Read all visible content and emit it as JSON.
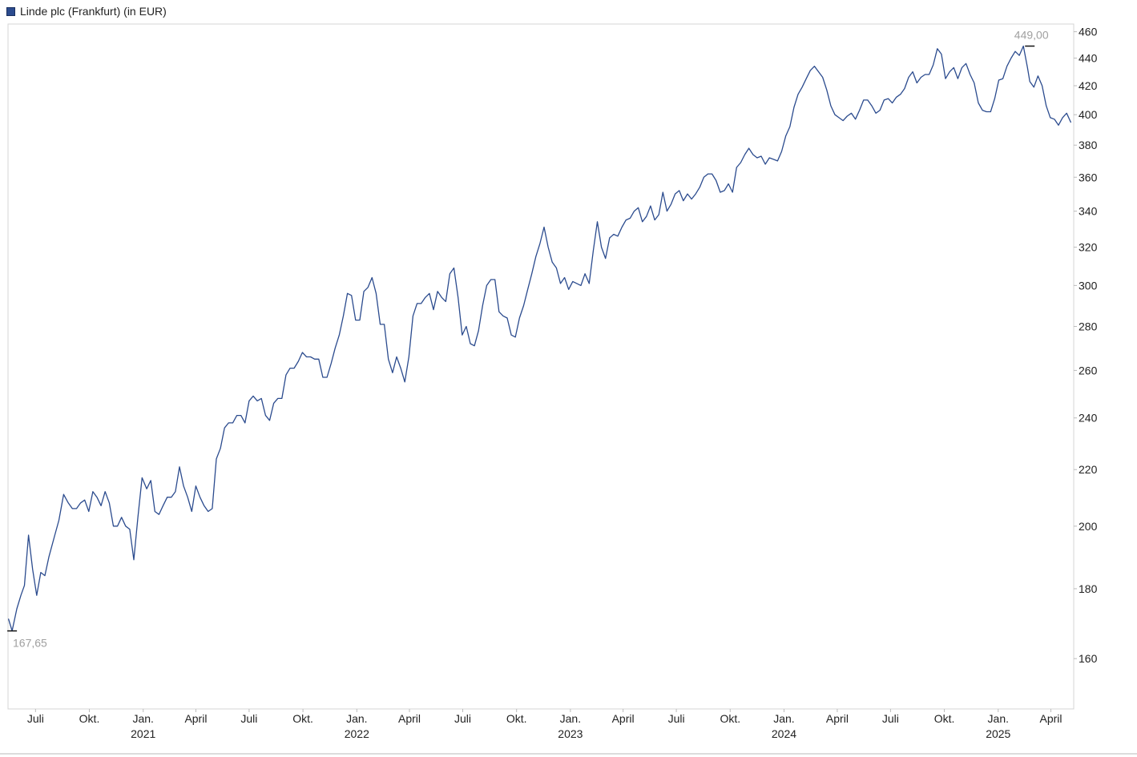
{
  "legend": {
    "label": "Linde plc (Frankfurt) (in EUR)",
    "color": "#2b4b8e"
  },
  "chart_data": {
    "type": "line",
    "title": "",
    "xlabel": "",
    "ylabel": "",
    "y_scale": "log",
    "ylim": [
      147,
      466
    ],
    "xlim": [
      "2020-05-15",
      "2025-05-10"
    ],
    "grid": false,
    "legend_position": "top-left",
    "y_ticks": [
      160,
      180,
      200,
      220,
      240,
      260,
      280,
      300,
      320,
      340,
      360,
      380,
      400,
      420,
      440,
      460
    ],
    "x_month_ticks": [
      {
        "date": "2020-07-01",
        "label": "Juli"
      },
      {
        "date": "2020-10-01",
        "label": "Okt."
      },
      {
        "date": "2021-01-01",
        "label": "Jan."
      },
      {
        "date": "2021-04-01",
        "label": "April"
      },
      {
        "date": "2021-07-01",
        "label": "Juli"
      },
      {
        "date": "2021-10-01",
        "label": "Okt."
      },
      {
        "date": "2022-01-01",
        "label": "Jan."
      },
      {
        "date": "2022-04-01",
        "label": "April"
      },
      {
        "date": "2022-07-01",
        "label": "Juli"
      },
      {
        "date": "2022-10-01",
        "label": "Okt."
      },
      {
        "date": "2023-01-01",
        "label": "Jan."
      },
      {
        "date": "2023-04-01",
        "label": "April"
      },
      {
        "date": "2023-07-01",
        "label": "Juli"
      },
      {
        "date": "2023-10-01",
        "label": "Okt."
      },
      {
        "date": "2024-01-01",
        "label": "Jan."
      },
      {
        "date": "2024-04-01",
        "label": "April"
      },
      {
        "date": "2024-07-01",
        "label": "Juli"
      },
      {
        "date": "2024-10-01",
        "label": "Okt."
      },
      {
        "date": "2025-01-01",
        "label": "Jan."
      },
      {
        "date": "2025-04-01",
        "label": "April"
      }
    ],
    "x_year_ticks": [
      {
        "date": "2021-01-01",
        "label": "2021"
      },
      {
        "date": "2022-01-01",
        "label": "2022"
      },
      {
        "date": "2023-01-01",
        "label": "2023"
      },
      {
        "date": "2024-01-01",
        "label": "2024"
      },
      {
        "date": "2025-01-01",
        "label": "2025"
      }
    ],
    "annotations": [
      {
        "label": "167,65",
        "date": "2020-05-22",
        "value": 167.65,
        "kind": "min"
      },
      {
        "label": "449,00",
        "date": "2025-02-24",
        "value": 449.0,
        "kind": "max"
      }
    ],
    "series": [
      {
        "name": "Linde plc (Frankfurt) (in EUR)",
        "color": "#2b4b8e",
        "x": [
          "2020-05-16",
          "2020-05-22",
          "2020-05-30",
          "2020-06-06",
          "2020-06-12",
          "2020-06-19",
          "2020-06-26",
          "2020-07-03",
          "2020-07-10",
          "2020-07-17",
          "2020-07-24",
          "2020-08-03",
          "2020-08-10",
          "2020-08-18",
          "2020-08-26",
          "2020-09-02",
          "2020-09-09",
          "2020-09-16",
          "2020-09-23",
          "2020-09-30",
          "2020-10-07",
          "2020-10-14",
          "2020-10-21",
          "2020-10-28",
          "2020-11-04",
          "2020-11-11",
          "2020-11-18",
          "2020-11-25",
          "2020-12-02",
          "2020-12-09",
          "2020-12-16",
          "2020-12-23",
          "2020-12-30",
          "2021-01-07",
          "2021-01-14",
          "2021-01-21",
          "2021-01-28",
          "2021-02-04",
          "2021-02-11",
          "2021-02-18",
          "2021-02-25",
          "2021-03-04",
          "2021-03-11",
          "2021-03-18",
          "2021-03-25",
          "2021-04-01",
          "2021-04-08",
          "2021-04-15",
          "2021-04-22",
          "2021-04-29",
          "2021-05-06",
          "2021-05-13",
          "2021-05-20",
          "2021-05-27",
          "2021-06-03",
          "2021-06-10",
          "2021-06-17",
          "2021-06-24",
          "2021-07-01",
          "2021-07-08",
          "2021-07-15",
          "2021-07-22",
          "2021-07-29",
          "2021-08-05",
          "2021-08-12",
          "2021-08-19",
          "2021-08-26",
          "2021-09-02",
          "2021-09-09",
          "2021-09-16",
          "2021-09-23",
          "2021-09-30",
          "2021-10-07",
          "2021-10-14",
          "2021-10-21",
          "2021-10-28",
          "2021-11-04",
          "2021-11-11",
          "2021-11-18",
          "2021-11-25",
          "2021-12-02",
          "2021-12-09",
          "2021-12-16",
          "2021-12-23",
          "2021-12-30",
          "2022-01-06",
          "2022-01-13",
          "2022-01-20",
          "2022-01-27",
          "2022-02-03",
          "2022-02-10",
          "2022-02-17",
          "2022-02-24",
          "2022-03-03",
          "2022-03-10",
          "2022-03-17",
          "2022-03-24",
          "2022-03-31",
          "2022-04-07",
          "2022-04-14",
          "2022-04-21",
          "2022-04-28",
          "2022-05-05",
          "2022-05-12",
          "2022-05-19",
          "2022-05-26",
          "2022-06-02",
          "2022-06-09",
          "2022-06-16",
          "2022-06-23",
          "2022-06-30",
          "2022-07-07",
          "2022-07-14",
          "2022-07-21",
          "2022-07-28",
          "2022-08-04",
          "2022-08-11",
          "2022-08-18",
          "2022-08-25",
          "2022-09-01",
          "2022-09-08",
          "2022-09-15",
          "2022-09-22",
          "2022-09-29",
          "2022-10-06",
          "2022-10-13",
          "2022-10-20",
          "2022-10-27",
          "2022-11-03",
          "2022-11-10",
          "2022-11-17",
          "2022-11-24",
          "2022-12-01",
          "2022-12-08",
          "2022-12-15",
          "2022-12-22",
          "2022-12-29",
          "2023-01-05",
          "2023-01-12",
          "2023-01-19",
          "2023-01-26",
          "2023-02-02",
          "2023-02-09",
          "2023-02-16",
          "2023-02-23",
          "2023-03-02",
          "2023-03-09",
          "2023-03-16",
          "2023-03-23",
          "2023-03-30",
          "2023-04-06",
          "2023-04-13",
          "2023-04-20",
          "2023-04-27",
          "2023-05-04",
          "2023-05-11",
          "2023-05-18",
          "2023-05-25",
          "2023-06-01",
          "2023-06-08",
          "2023-06-15",
          "2023-06-22",
          "2023-06-29",
          "2023-07-06",
          "2023-07-13",
          "2023-07-20",
          "2023-07-27",
          "2023-08-03",
          "2023-08-10",
          "2023-08-17",
          "2023-08-24",
          "2023-08-31",
          "2023-09-07",
          "2023-09-14",
          "2023-09-21",
          "2023-09-28",
          "2023-10-05",
          "2023-10-12",
          "2023-10-19",
          "2023-10-26",
          "2023-11-02",
          "2023-11-09",
          "2023-11-16",
          "2023-11-23",
          "2023-11-30",
          "2023-12-07",
          "2023-12-14",
          "2023-12-21",
          "2023-12-28",
          "2024-01-04",
          "2024-01-11",
          "2024-01-18",
          "2024-01-25",
          "2024-02-01",
          "2024-02-08",
          "2024-02-15",
          "2024-02-22",
          "2024-02-29",
          "2024-03-07",
          "2024-03-14",
          "2024-03-21",
          "2024-03-28",
          "2024-04-04",
          "2024-04-11",
          "2024-04-18",
          "2024-04-25",
          "2024-05-02",
          "2024-05-09",
          "2024-05-16",
          "2024-05-23",
          "2024-05-30",
          "2024-06-06",
          "2024-06-13",
          "2024-06-20",
          "2024-06-27",
          "2024-07-04",
          "2024-07-11",
          "2024-07-18",
          "2024-07-25",
          "2024-08-01",
          "2024-08-08",
          "2024-08-15",
          "2024-08-22",
          "2024-08-29",
          "2024-09-05",
          "2024-09-12",
          "2024-09-19",
          "2024-09-26",
          "2024-10-03",
          "2024-10-10",
          "2024-10-17",
          "2024-10-24",
          "2024-10-31",
          "2024-11-07",
          "2024-11-14",
          "2024-11-21",
          "2024-11-28",
          "2024-12-05",
          "2024-12-12",
          "2024-12-19",
          "2024-12-26",
          "2025-01-02",
          "2025-01-09",
          "2025-01-16",
          "2025-01-23",
          "2025-01-30",
          "2025-02-06",
          "2025-02-13",
          "2025-02-20",
          "2025-02-24",
          "2025-03-03",
          "2025-03-10",
          "2025-03-17",
          "2025-03-24",
          "2025-03-31",
          "2025-04-07",
          "2025-04-14",
          "2025-04-21",
          "2025-04-28",
          "2025-05-05"
        ],
        "values": [
          171,
          167.65,
          174,
          178,
          181,
          197,
          186,
          178,
          185,
          184,
          190,
          197,
          202,
          211,
          208,
          206,
          206,
          208,
          209,
          205,
          212,
          210,
          207,
          212,
          208,
          200,
          200,
          203,
          200,
          199,
          189,
          203,
          217,
          213,
          216,
          205,
          204,
          207,
          210,
          210,
          212,
          221,
          214,
          210,
          205,
          214,
          210,
          207,
          205,
          206,
          224,
          228,
          236,
          238,
          238,
          241,
          241,
          238,
          247,
          249,
          247,
          248,
          241,
          239,
          246,
          248,
          248,
          258,
          261,
          261,
          264,
          268,
          266,
          266,
          265,
          265,
          257,
          257,
          263,
          270,
          276,
          285,
          296,
          295,
          283,
          283,
          297,
          299,
          304,
          296,
          281,
          281,
          265,
          259,
          266,
          261,
          255,
          266,
          285,
          291,
          291,
          294,
          296,
          288,
          297,
          294,
          292,
          306,
          309,
          294,
          276,
          280,
          272,
          271,
          278,
          290,
          300,
          303,
          303,
          287,
          285,
          284,
          276,
          275,
          284,
          290,
          298,
          306,
          315,
          322,
          331,
          320,
          312,
          309,
          301,
          304,
          298,
          302,
          301,
          300,
          306,
          301,
          318,
          334,
          320,
          314,
          325,
          327,
          326,
          331,
          335,
          336,
          340,
          342,
          334,
          337,
          343,
          335,
          338,
          351,
          340,
          344,
          350,
          352,
          346,
          350,
          347,
          350,
          354,
          360,
          362,
          362,
          358,
          351,
          352,
          356,
          351,
          366,
          369,
          374,
          378,
          374,
          372,
          373,
          368,
          372,
          371,
          370,
          376,
          386,
          392,
          405,
          414,
          419,
          425,
          431,
          434,
          430,
          426,
          417,
          406,
          400,
          398,
          396,
          399,
          401,
          397,
          403,
          410,
          410,
          406,
          401,
          403,
          410,
          411,
          408,
          412,
          414,
          418,
          426,
          430,
          422,
          426,
          428,
          428,
          435,
          447,
          443,
          425,
          430,
          433,
          425,
          433,
          436,
          428,
          422,
          408,
          403,
          402,
          402,
          411,
          424,
          425,
          434,
          440,
          445,
          442,
          449,
          433,
          423,
          419,
          427,
          420,
          406,
          398,
          397,
          393,
          398,
          401,
          395
        ]
      }
    ]
  }
}
